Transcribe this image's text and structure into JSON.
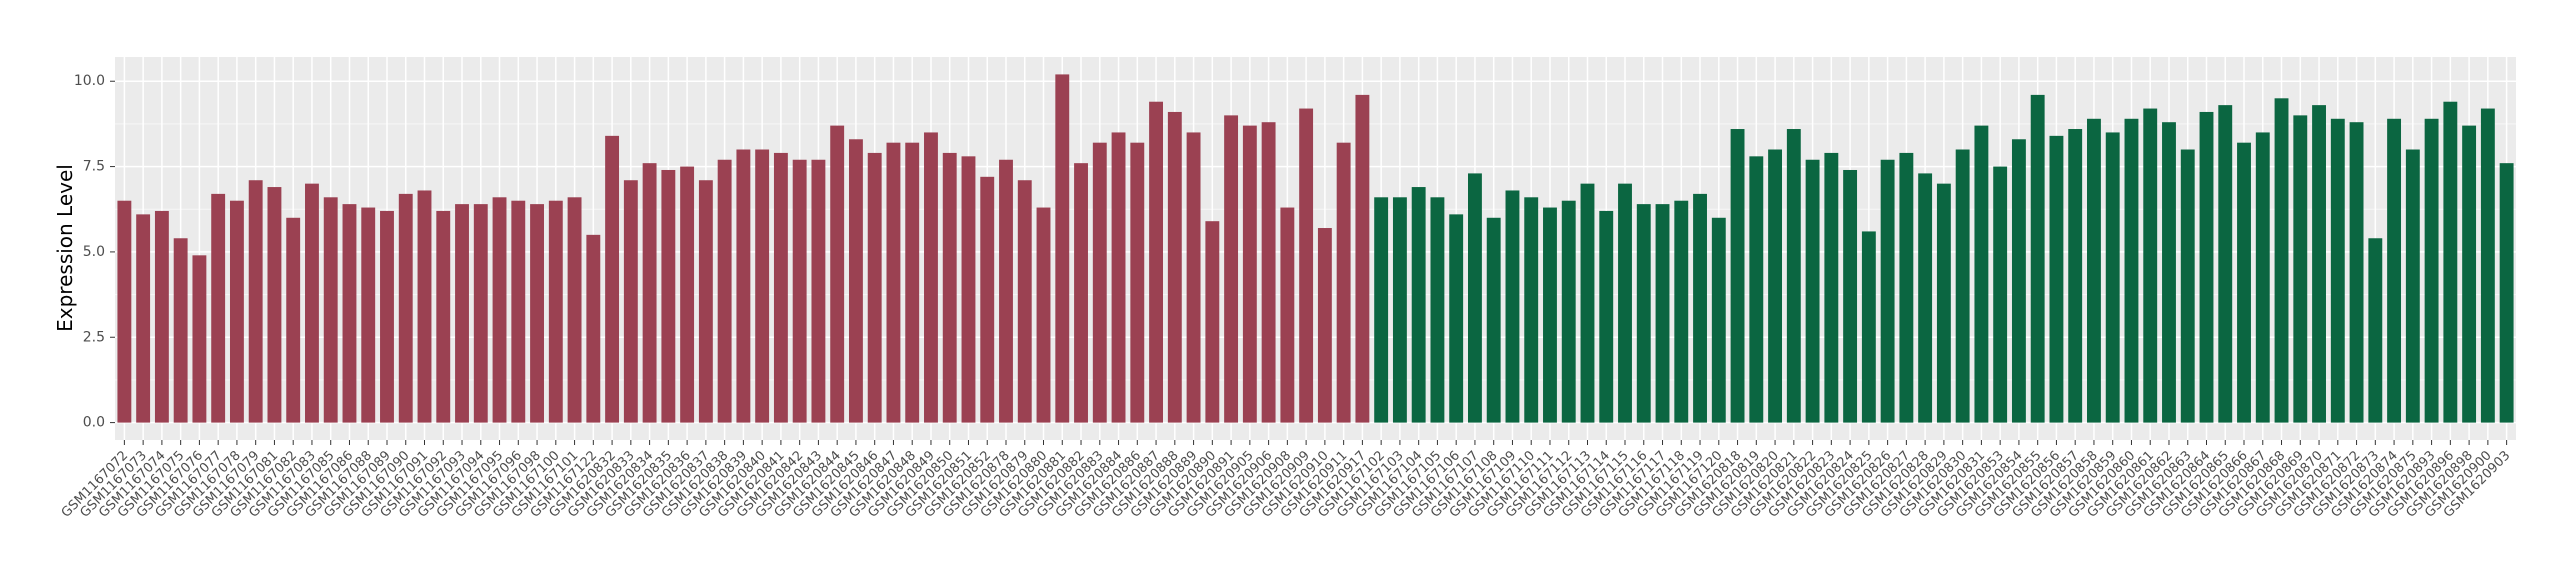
{
  "chart_data": {
    "type": "bar",
    "y_label": "Expression Level",
    "categories": [
      "GSM1167072",
      "GSM1167073",
      "GSM1167074",
      "GSM1167075",
      "GSM1167076",
      "GSM1167077",
      "GSM1167078",
      "GSM1167079",
      "GSM1167081",
      "GSM1167082",
      "GSM1167083",
      "GSM1167085",
      "GSM1167086",
      "GSM1167088",
      "GSM1167089",
      "GSM1167090",
      "GSM1167091",
      "GSM1167092",
      "GSM1167093",
      "GSM1167094",
      "GSM1167095",
      "GSM1167096",
      "GSM1167098",
      "GSM1167100",
      "GSM1167101",
      "GSM1167122",
      "GSM1620832",
      "GSM1620833",
      "GSM1620834",
      "GSM1620835",
      "GSM1620836",
      "GSM1620837",
      "GSM1620838",
      "GSM1620839",
      "GSM1620840",
      "GSM1620841",
      "GSM1620842",
      "GSM1620843",
      "GSM1620844",
      "GSM1620845",
      "GSM1620846",
      "GSM1620847",
      "GSM1620848",
      "GSM1620849",
      "GSM1620850",
      "GSM1620851",
      "GSM1620852",
      "GSM1620878",
      "GSM1620879",
      "GSM1620880",
      "GSM1620881",
      "GSM1620882",
      "GSM1620883",
      "GSM1620884",
      "GSM1620886",
      "GSM1620887",
      "GSM1620888",
      "GSM1620889",
      "GSM1620890",
      "GSM1620891",
      "GSM1620905",
      "GSM1620906",
      "GSM1620908",
      "GSM1620909",
      "GSM1620910",
      "GSM1620911",
      "GSM1620917",
      "GSM1167102",
      "GSM1167103",
      "GSM1167104",
      "GSM1167105",
      "GSM1167106",
      "GSM1167107",
      "GSM1167108",
      "GSM1167109",
      "GSM1167110",
      "GSM1167111",
      "GSM1167112",
      "GSM1167113",
      "GSM1167114",
      "GSM1167115",
      "GSM1167116",
      "GSM1167117",
      "GSM1167118",
      "GSM1167119",
      "GSM1167120",
      "GSM1620818",
      "GSM1620819",
      "GSM1620820",
      "GSM1620821",
      "GSM1620822",
      "GSM1620823",
      "GSM1620824",
      "GSM1620825",
      "GSM1620826",
      "GSM1620827",
      "GSM1620828",
      "GSM1620829",
      "GSM1620830",
      "GSM1620831",
      "GSM1620853",
      "GSM1620854",
      "GSM1620855",
      "GSM1620856",
      "GSM1620857",
      "GSM1620858",
      "GSM1620859",
      "GSM1620860",
      "GSM1620861",
      "GSM1620862",
      "GSM1620863",
      "GSM1620864",
      "GSM1620865",
      "GSM1620866",
      "GSM1620867",
      "GSM1620868",
      "GSM1620869",
      "GSM1620870",
      "GSM1620871",
      "GSM1620872",
      "GSM1620873",
      "GSM1620874",
      "GSM1620875",
      "GSM1620893",
      "GSM1620896",
      "GSM1620898",
      "GSM1620900",
      "GSM1620903"
    ],
    "series": [
      {
        "color": "#9b4152",
        "values": [
          6.5,
          6.1,
          6.2,
          5.4,
          4.9,
          6.7,
          6.5,
          7.1,
          6.9,
          6.0,
          7.0,
          6.6,
          6.4,
          6.3,
          6.2,
          6.7,
          6.8,
          6.2,
          6.4,
          6.4,
          6.6,
          6.5,
          6.4,
          6.5,
          6.6,
          5.5,
          8.4,
          7.1,
          7.6,
          7.4,
          7.5,
          7.1,
          7.7,
          8.0,
          8.0,
          7.9,
          7.7,
          7.7,
          8.7,
          8.3,
          7.9,
          8.2,
          8.2,
          8.5,
          7.9,
          7.8,
          7.2,
          7.7,
          7.1,
          6.3,
          10.2,
          7.6,
          8.2,
          8.5,
          8.2,
          9.4,
          9.1,
          8.5,
          5.9,
          9.0,
          8.7,
          8.8,
          6.3,
          9.2,
          5.7,
          8.2,
          9.6,
          null,
          null,
          null,
          null,
          null,
          null,
          null,
          null,
          null,
          null,
          null,
          null,
          null,
          null,
          null,
          null,
          null,
          null,
          null,
          null,
          null,
          null,
          null,
          null,
          null,
          null,
          null,
          null,
          null,
          null,
          null,
          null,
          null,
          null,
          null,
          null,
          null,
          null,
          null,
          null,
          null,
          null,
          null,
          null,
          null,
          null,
          null,
          null,
          null,
          null,
          null,
          null,
          null,
          null,
          null,
          null,
          null,
          null,
          null,
          null,
          null
        ]
      },
      {
        "color": "#0b6641",
        "values": [
          null,
          null,
          null,
          null,
          null,
          null,
          null,
          null,
          null,
          null,
          null,
          null,
          null,
          null,
          null,
          null,
          null,
          null,
          null,
          null,
          null,
          null,
          null,
          null,
          null,
          null,
          null,
          null,
          null,
          null,
          null,
          null,
          null,
          null,
          null,
          null,
          null,
          null,
          null,
          null,
          null,
          null,
          null,
          null,
          null,
          null,
          null,
          null,
          null,
          null,
          null,
          null,
          null,
          null,
          null,
          null,
          null,
          null,
          null,
          null,
          null,
          null,
          null,
          null,
          null,
          null,
          null,
          6.6,
          6.6,
          6.9,
          6.6,
          6.1,
          7.3,
          6.0,
          6.8,
          6.6,
          6.3,
          6.5,
          7.0,
          6.2,
          7.0,
          6.4,
          6.4,
          6.5,
          6.7,
          6.0,
          8.6,
          7.8,
          8.0,
          8.6,
          7.7,
          7.9,
          7.4,
          5.6,
          7.7,
          7.9,
          7.3,
          7.0,
          8.0,
          8.7,
          7.5,
          8.3,
          9.6,
          8.4,
          8.6,
          8.9,
          8.5,
          8.9,
          9.2,
          8.8,
          8.0,
          9.1,
          9.3,
          8.2,
          8.5,
          9.5,
          9.0,
          9.3,
          8.9,
          8.8,
          5.4,
          8.9,
          8.0,
          8.9,
          9.4,
          8.7,
          9.2,
          7.6
        ]
      }
    ],
    "ylim": [
      -0.51,
      10.71
    ],
    "yticks": [
      {
        "value": 0,
        "label": "0.0"
      },
      {
        "value": 2.5,
        "label": "2.5"
      },
      {
        "value": 5,
        "label": "5.0"
      },
      {
        "value": 7.5,
        "label": "7.5"
      },
      {
        "value": 10,
        "label": "10.0"
      }
    ],
    "grid": true
  }
}
